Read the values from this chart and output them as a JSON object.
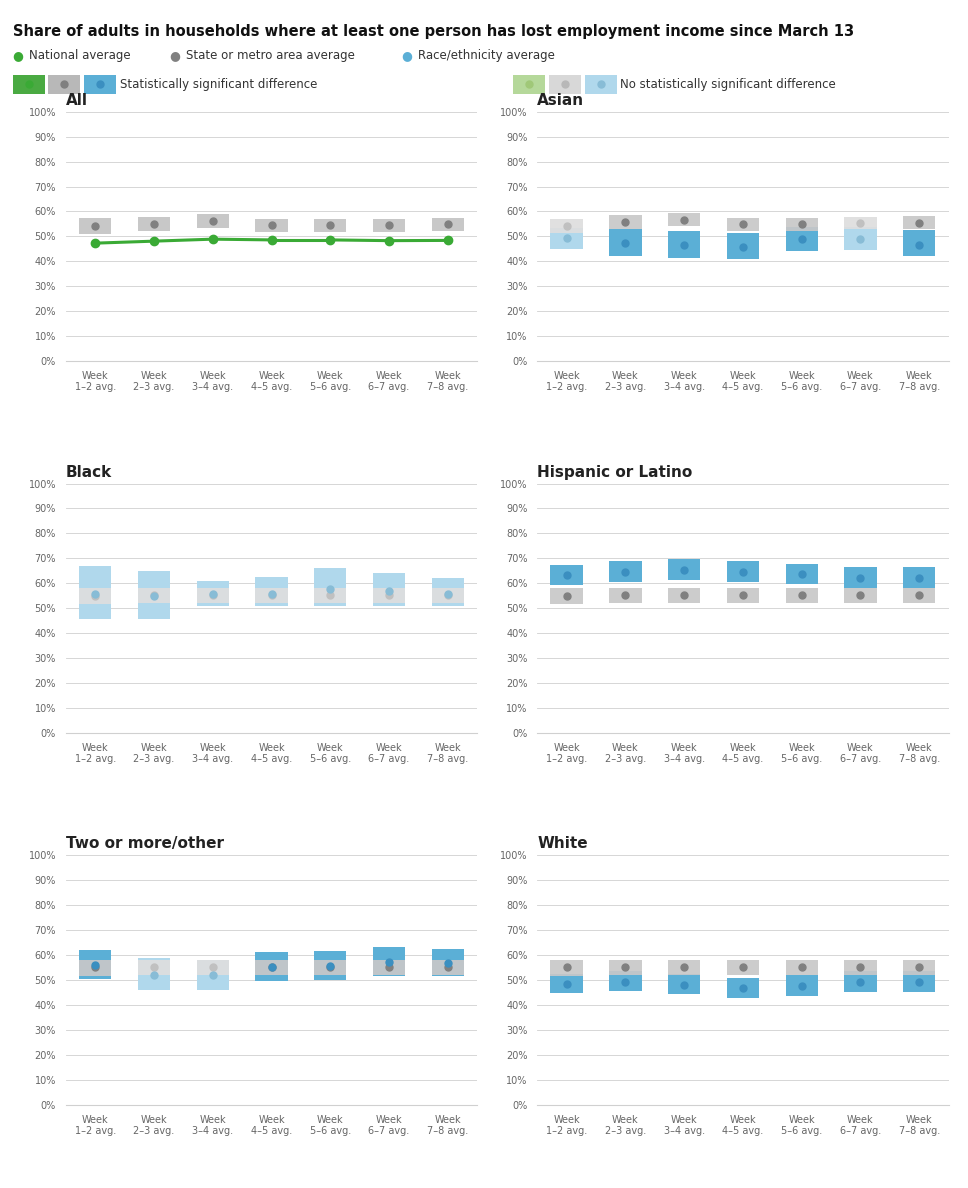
{
  "title": "Share of adults in households where at least one person has lost employment income since March 13",
  "weeks": [
    "Week\n1–2 avg.",
    "Week\n2–3 avg.",
    "Week\n3–4 avg.",
    "Week\n4–5 avg.",
    "Week\n5–6 avg.",
    "Week\n6–7 avg.",
    "Week\n7–8 avg."
  ],
  "subplots": [
    {
      "title": "All",
      "type": "national",
      "national_vals": [
        0.473,
        0.481,
        0.489,
        0.486,
        0.486,
        0.483,
        0.484
      ],
      "state_low": [
        0.508,
        0.522,
        0.535,
        0.518,
        0.518,
        0.518,
        0.522
      ],
      "state_high": [
        0.572,
        0.578,
        0.59,
        0.57,
        0.57,
        0.568,
        0.572
      ],
      "state_dot": [
        0.542,
        0.551,
        0.562,
        0.545,
        0.545,
        0.544,
        0.548
      ],
      "race_low": null,
      "race_high": null,
      "race_dot": null,
      "significant": [
        true,
        true,
        true,
        true,
        true,
        true,
        true
      ]
    },
    {
      "title": "Asian",
      "type": "race",
      "national_vals": null,
      "state_low": [
        0.515,
        0.53,
        0.542,
        0.522,
        0.522,
        0.528,
        0.53
      ],
      "state_high": [
        0.57,
        0.585,
        0.592,
        0.572,
        0.572,
        0.578,
        0.582
      ],
      "state_dot": [
        0.542,
        0.558,
        0.565,
        0.548,
        0.548,
        0.552,
        0.555
      ],
      "race_low": [
        0.448,
        0.422,
        0.415,
        0.408,
        0.44,
        0.445,
        0.42
      ],
      "race_high": [
        0.535,
        0.528,
        0.522,
        0.512,
        0.538,
        0.538,
        0.525
      ],
      "race_dot": [
        0.492,
        0.472,
        0.465,
        0.456,
        0.488,
        0.49,
        0.466
      ],
      "significant": [
        false,
        true,
        true,
        true,
        true,
        false,
        true
      ]
    },
    {
      "title": "Black",
      "type": "race",
      "national_vals": null,
      "state_low": [
        0.518,
        0.522,
        0.522,
        0.522,
        0.522,
        0.522,
        0.522
      ],
      "state_high": [
        0.582,
        0.582,
        0.582,
        0.582,
        0.582,
        0.582,
        0.582
      ],
      "state_dot": [
        0.551,
        0.552,
        0.552,
        0.552,
        0.552,
        0.552,
        0.554
      ],
      "race_low": [
        0.458,
        0.455,
        0.508,
        0.508,
        0.508,
        0.508,
        0.508
      ],
      "race_high": [
        0.668,
        0.648,
        0.608,
        0.625,
        0.66,
        0.642,
        0.62
      ],
      "race_dot": [
        0.558,
        0.548,
        0.558,
        0.558,
        0.578,
        0.57,
        0.558
      ],
      "significant": [
        false,
        false,
        false,
        false,
        false,
        false,
        false
      ]
    },
    {
      "title": "Hispanic or Latino",
      "type": "race",
      "national_vals": null,
      "state_low": [
        0.518,
        0.522,
        0.522,
        0.522,
        0.522,
        0.522,
        0.522
      ],
      "state_high": [
        0.582,
        0.582,
        0.582,
        0.582,
        0.582,
        0.582,
        0.582
      ],
      "state_dot": [
        0.551,
        0.552,
        0.552,
        0.552,
        0.552,
        0.552,
        0.554
      ],
      "race_low": [
        0.592,
        0.605,
        0.615,
        0.605,
        0.598,
        0.582,
        0.582
      ],
      "race_high": [
        0.672,
        0.688,
        0.698,
        0.688,
        0.678,
        0.665,
        0.665
      ],
      "race_dot": [
        0.632,
        0.645,
        0.655,
        0.645,
        0.638,
        0.622,
        0.622
      ],
      "significant": [
        true,
        true,
        true,
        true,
        true,
        true,
        true
      ]
    },
    {
      "title": "Two or more/other",
      "type": "race",
      "national_vals": null,
      "state_low": [
        0.518,
        0.522,
        0.522,
        0.522,
        0.522,
        0.522,
        0.522
      ],
      "state_high": [
        0.582,
        0.582,
        0.582,
        0.582,
        0.582,
        0.582,
        0.582
      ],
      "state_dot": [
        0.551,
        0.552,
        0.552,
        0.552,
        0.552,
        0.552,
        0.554
      ],
      "race_low": [
        0.505,
        0.462,
        0.46,
        0.495,
        0.502,
        0.515,
        0.515
      ],
      "race_high": [
        0.622,
        0.588,
        0.582,
        0.612,
        0.618,
        0.632,
        0.625
      ],
      "race_dot": [
        0.562,
        0.522,
        0.52,
        0.552,
        0.558,
        0.572,
        0.568
      ],
      "significant": [
        true,
        false,
        false,
        true,
        true,
        true,
        true
      ]
    },
    {
      "title": "White",
      "type": "race",
      "national_vals": null,
      "state_low": [
        0.518,
        0.522,
        0.522,
        0.522,
        0.522,
        0.522,
        0.522
      ],
      "state_high": [
        0.582,
        0.582,
        0.582,
        0.582,
        0.582,
        0.582,
        0.582
      ],
      "state_dot": [
        0.551,
        0.552,
        0.552,
        0.552,
        0.552,
        0.552,
        0.554
      ],
      "race_low": [
        0.448,
        0.455,
        0.445,
        0.428,
        0.438,
        0.452,
        0.452
      ],
      "race_high": [
        0.525,
        0.535,
        0.525,
        0.51,
        0.52,
        0.535,
        0.535
      ],
      "race_dot": [
        0.485,
        0.492,
        0.482,
        0.468,
        0.478,
        0.492,
        0.492
      ],
      "significant": [
        true,
        true,
        true,
        true,
        true,
        true,
        true
      ]
    }
  ],
  "colors": {
    "national_green": "#3aaa35",
    "national_green_light": "#96d468",
    "state_gray_dot": "#808080",
    "state_gray_dot_light": "#c0c0c0",
    "state_bar_sig": "#c8c8c8",
    "state_bar_nosig": "#dedede",
    "race_bar_sig": "#5bafd6",
    "race_bar_nosig": "#b0d8ec",
    "race_dot_sig": "#3b8fc0",
    "race_dot_nosig": "#88bcd6",
    "background": "#ffffff",
    "grid_line": "#d0d0d0",
    "tick_label": "#666666",
    "title_color": "#222222"
  },
  "ylim": [
    0,
    1.0
  ],
  "yticks": [
    0.0,
    0.1,
    0.2,
    0.3,
    0.4,
    0.5,
    0.6,
    0.7,
    0.8,
    0.9,
    1.0
  ],
  "ytick_labels": [
    "0%",
    "10%",
    "20%",
    "30%",
    "40%",
    "50%",
    "60%",
    "70%",
    "80%",
    "90%",
    "100%"
  ]
}
